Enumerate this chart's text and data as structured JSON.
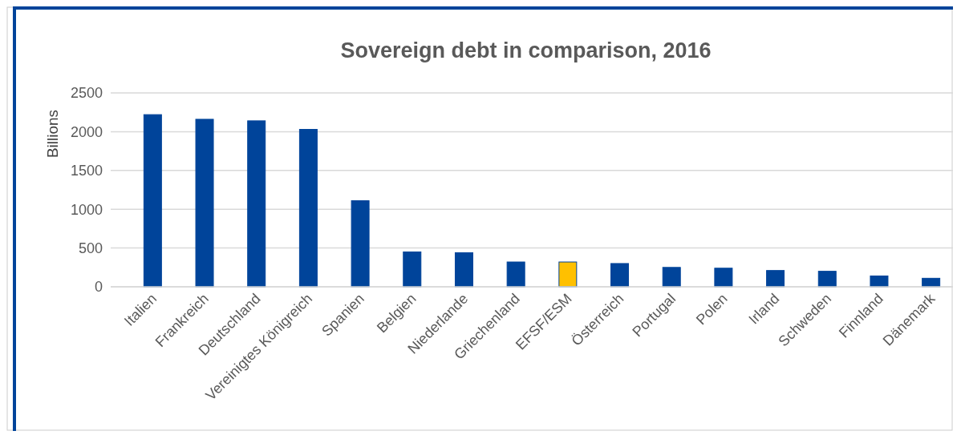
{
  "chart_data": {
    "type": "bar",
    "title": "Sovereign debt in comparison, 2016",
    "ylabel": "Billions",
    "categories": [
      "Italien",
      "Frankreich",
      "Deutschland",
      "Vereinigtes Königreich",
      "Spanien",
      "Belgien",
      "Niederlande",
      "Griechenland",
      "EFSF/ESM",
      "Österreich",
      "Portugal",
      "Polen",
      "Irland",
      "Schweden",
      "Finnland",
      "Dänemark"
    ],
    "values": [
      2220,
      2160,
      2140,
      2030,
      1110,
      450,
      440,
      320,
      320,
      300,
      250,
      240,
      210,
      200,
      140,
      110
    ],
    "colors": [
      "#00449a",
      "#00449a",
      "#00449a",
      "#00449a",
      "#00449a",
      "#00449a",
      "#00449a",
      "#00449a",
      "#ffc000",
      "#00449a",
      "#00449a",
      "#00449a",
      "#00449a",
      "#00449a",
      "#00449a",
      "#00449a"
    ],
    "ylim": [
      0,
      2500
    ],
    "yticks": [
      0,
      500,
      1000,
      1500,
      2000,
      2500
    ],
    "grid": "y"
  }
}
